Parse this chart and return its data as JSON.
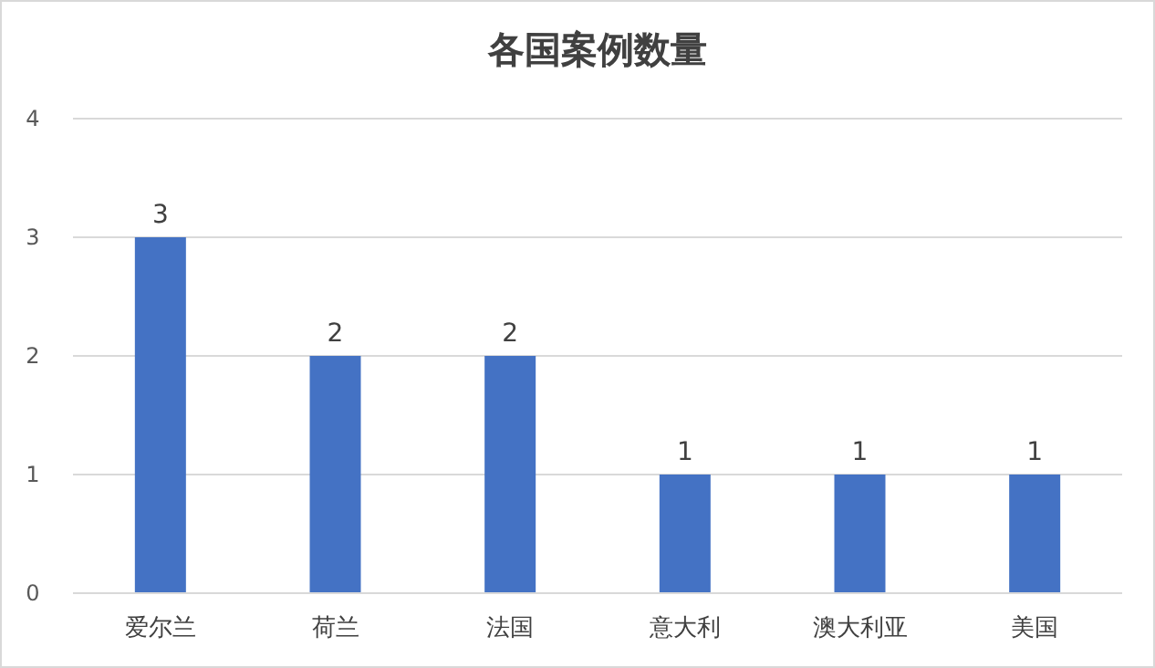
{
  "chart_data": {
    "type": "bar",
    "title": "各国案例数量",
    "categories": [
      "爱尔兰",
      "荷兰",
      "法国",
      "意大利",
      "澳大利亚",
      "美国"
    ],
    "values": [
      3,
      2,
      2,
      1,
      1,
      1
    ],
    "color": "#4472c4",
    "ylim": [
      0,
      4
    ],
    "yticks": [
      0,
      1,
      2,
      3,
      4
    ],
    "grid": "y",
    "data_labels": true
  }
}
